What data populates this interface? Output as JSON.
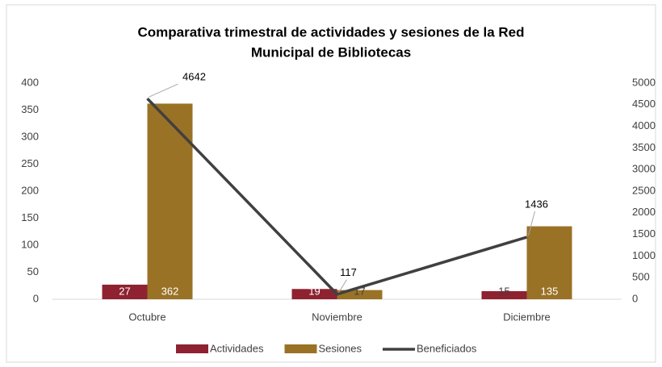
{
  "chart_data": {
    "type": "bar",
    "title": [
      "Comparativa trimestral de actividades y sesiones de la Red",
      "Municipal de Bibliotecas"
    ],
    "categories": [
      "Octubre",
      "Noviembre",
      "Diciembre"
    ],
    "series": [
      {
        "name": "Actividades",
        "color": "#8e2230",
        "values": [
          27,
          19,
          15
        ]
      },
      {
        "name": "Sesiones",
        "color": "#9a7226",
        "values": [
          362,
          17,
          135
        ]
      },
      {
        "name": "Beneficiados",
        "color": "#404040",
        "type": "line",
        "axis": "y2",
        "values": [
          4642,
          117,
          1436
        ]
      }
    ],
    "ylim": [
      0,
      400
    ],
    "yticks": [
      0,
      50,
      100,
      150,
      200,
      250,
      300,
      350,
      400
    ],
    "y2lim": [
      0,
      5000
    ],
    "y2ticks": [
      0,
      500,
      1000,
      1500,
      2000,
      2500,
      3000,
      3500,
      4000,
      4500,
      5000
    ],
    "legend": "bottom"
  }
}
